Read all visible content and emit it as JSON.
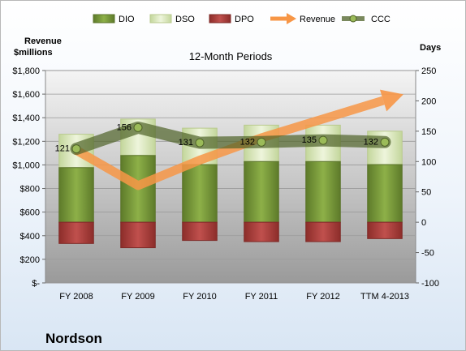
{
  "company": "Nordson",
  "chart_data": {
    "type": "bar",
    "title": "12-Month Periods",
    "left_axis_label": [
      "Revenue",
      "$millions"
    ],
    "right_axis_label": "Days",
    "categories": [
      "FY 2008",
      "FY 2009",
      "FY 2010",
      "FY 2011",
      "FY 2012",
      "TTM 4-2013"
    ],
    "left_axis": {
      "min": 0,
      "max": 1800,
      "step": 200,
      "ticks": [
        "$-",
        "$200",
        "$400",
        "$600",
        "$800",
        "$1,000",
        "$1,200",
        "$1,400",
        "$1,600",
        "$1,800"
      ]
    },
    "right_axis": {
      "min": -100,
      "max": 250,
      "step": 50,
      "ticks": [
        "-100",
        "-50",
        "0",
        "50",
        "100",
        "150",
        "200",
        "250"
      ]
    },
    "legend": [
      "DIO",
      "DSO",
      "DPO",
      "Revenue",
      "CCC"
    ],
    "legend_position": "top",
    "grid": true,
    "series": [
      {
        "name": "DIO",
        "kind": "stacked-bar",
        "axis": "right",
        "color": "#77933c",
        "values": [
          90,
          110,
          95,
          100,
          100,
          95
        ]
      },
      {
        "name": "DSO",
        "kind": "stacked-bar",
        "axis": "right",
        "color": "#d7e4bd",
        "values": [
          55,
          60,
          60,
          60,
          60,
          55
        ]
      },
      {
        "name": "DPO",
        "kind": "bar-negative",
        "axis": "right",
        "color": "#c0504d",
        "values": [
          -35,
          -42,
          -30,
          -32,
          -32,
          -27
        ]
      },
      {
        "name": "Revenue",
        "kind": "arrow-line",
        "axis": "left",
        "color": "#f79646",
        "values": [
          1125,
          825,
          1040,
          1230,
          1390,
          1550
        ]
      },
      {
        "name": "CCC",
        "kind": "line-markers",
        "axis": "right",
        "color": "#4f6228",
        "values": [
          121,
          156,
          131,
          132,
          135,
          132
        ],
        "labels": [
          "121",
          "156",
          "131",
          "132",
          "135",
          "132"
        ]
      }
    ]
  }
}
